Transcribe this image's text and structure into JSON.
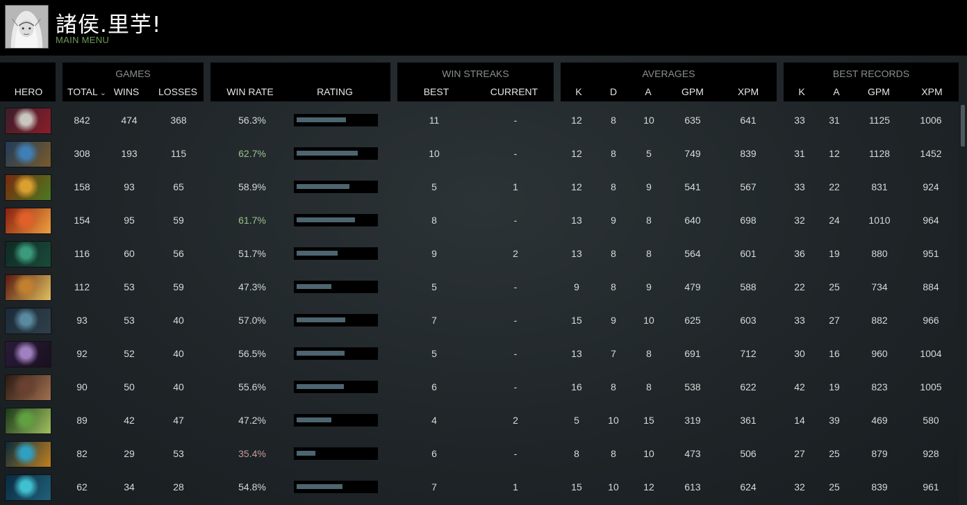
{
  "header": {
    "username": "諸侯.里芋!",
    "menu_link": "MAIN MENU"
  },
  "groups": {
    "games": "GAMES",
    "win_streaks": "WIN STREAKS",
    "averages": "AVERAGES",
    "best_records": "BEST RECORDS"
  },
  "columns": {
    "hero": "HERO",
    "total": "TOTAL",
    "wins": "WINS",
    "losses": "LOSSES",
    "win_rate": "WIN RATE",
    "rating": "RATING",
    "best": "BEST",
    "current": "CURRENT",
    "avg_k": "K",
    "avg_d": "D",
    "avg_a": "A",
    "avg_gpm": "GPM",
    "avg_xpm": "XPM",
    "best_k": "K",
    "best_a": "A",
    "best_gpm": "GPM",
    "best_xpm": "XPM"
  },
  "colors": {
    "win_rate_high": "#9cc48c",
    "win_rate_low": "#c99a9a",
    "rating_bar": "#4d6570",
    "menu_link": "#6e9c58"
  },
  "rows": [
    {
      "total": "842",
      "wins": "474",
      "losses": "368",
      "win_rate": "56.3%",
      "win_rate_style": "normal",
      "rating": 0.63,
      "streak_best": "11",
      "streak_current": "-",
      "k": "12",
      "d": "8",
      "a": "10",
      "gpm": "635",
      "xpm": "641",
      "best_k": "33",
      "best_a": "31",
      "best_gpm": "1125",
      "best_xpm": "1006"
    },
    {
      "total": "308",
      "wins": "193",
      "losses": "115",
      "win_rate": "62.7%",
      "win_rate_style": "high",
      "rating": 0.78,
      "streak_best": "10",
      "streak_current": "-",
      "k": "12",
      "d": "8",
      "a": "5",
      "gpm": "749",
      "xpm": "839",
      "best_k": "31",
      "best_a": "12",
      "best_gpm": "1128",
      "best_xpm": "1452"
    },
    {
      "total": "158",
      "wins": "93",
      "losses": "65",
      "win_rate": "58.9%",
      "win_rate_style": "normal",
      "rating": 0.67,
      "streak_best": "5",
      "streak_current": "1",
      "k": "12",
      "d": "8",
      "a": "9",
      "gpm": "541",
      "xpm": "567",
      "best_k": "33",
      "best_a": "22",
      "best_gpm": "831",
      "best_xpm": "924"
    },
    {
      "total": "154",
      "wins": "95",
      "losses": "59",
      "win_rate": "61.7%",
      "win_rate_style": "high",
      "rating": 0.74,
      "streak_best": "8",
      "streak_current": "-",
      "k": "13",
      "d": "9",
      "a": "8",
      "gpm": "640",
      "xpm": "698",
      "best_k": "32",
      "best_a": "24",
      "best_gpm": "1010",
      "best_xpm": "964"
    },
    {
      "total": "116",
      "wins": "60",
      "losses": "56",
      "win_rate": "51.7%",
      "win_rate_style": "normal",
      "rating": 0.52,
      "streak_best": "9",
      "streak_current": "2",
      "k": "13",
      "d": "8",
      "a": "8",
      "gpm": "564",
      "xpm": "601",
      "best_k": "36",
      "best_a": "19",
      "best_gpm": "880",
      "best_xpm": "951"
    },
    {
      "total": "112",
      "wins": "53",
      "losses": "59",
      "win_rate": "47.3%",
      "win_rate_style": "normal",
      "rating": 0.44,
      "streak_best": "5",
      "streak_current": "-",
      "k": "9",
      "d": "8",
      "a": "9",
      "gpm": "479",
      "xpm": "588",
      "best_k": "22",
      "best_a": "25",
      "best_gpm": "734",
      "best_xpm": "884"
    },
    {
      "total": "93",
      "wins": "53",
      "losses": "40",
      "win_rate": "57.0%",
      "win_rate_style": "normal",
      "rating": 0.62,
      "streak_best": "7",
      "streak_current": "-",
      "k": "15",
      "d": "9",
      "a": "10",
      "gpm": "625",
      "xpm": "603",
      "best_k": "33",
      "best_a": "27",
      "best_gpm": "882",
      "best_xpm": "966"
    },
    {
      "total": "92",
      "wins": "52",
      "losses": "40",
      "win_rate": "56.5%",
      "win_rate_style": "normal",
      "rating": 0.61,
      "streak_best": "5",
      "streak_current": "-",
      "k": "13",
      "d": "7",
      "a": "8",
      "gpm": "691",
      "xpm": "712",
      "best_k": "30",
      "best_a": "16",
      "best_gpm": "960",
      "best_xpm": "1004"
    },
    {
      "total": "90",
      "wins": "50",
      "losses": "40",
      "win_rate": "55.6%",
      "win_rate_style": "normal",
      "rating": 0.6,
      "streak_best": "6",
      "streak_current": "-",
      "k": "16",
      "d": "8",
      "a": "8",
      "gpm": "538",
      "xpm": "622",
      "best_k": "42",
      "best_a": "19",
      "best_gpm": "823",
      "best_xpm": "1005"
    },
    {
      "total": "89",
      "wins": "42",
      "losses": "47",
      "win_rate": "47.2%",
      "win_rate_style": "normal",
      "rating": 0.44,
      "streak_best": "4",
      "streak_current": "2",
      "k": "5",
      "d": "10",
      "a": "15",
      "gpm": "319",
      "xpm": "361",
      "best_k": "14",
      "best_a": "39",
      "best_gpm": "469",
      "best_xpm": "580"
    },
    {
      "total": "82",
      "wins": "29",
      "losses": "53",
      "win_rate": "35.4%",
      "win_rate_style": "low",
      "rating": 0.24,
      "streak_best": "6",
      "streak_current": "-",
      "k": "8",
      "d": "8",
      "a": "10",
      "gpm": "473",
      "xpm": "506",
      "best_k": "27",
      "best_a": "25",
      "best_gpm": "879",
      "best_xpm": "928"
    },
    {
      "total": "62",
      "wins": "34",
      "losses": "28",
      "win_rate": "54.8%",
      "win_rate_style": "normal",
      "rating": 0.58,
      "streak_best": "7",
      "streak_current": "1",
      "k": "15",
      "d": "10",
      "a": "12",
      "gpm": "613",
      "xpm": "624",
      "best_k": "32",
      "best_a": "25",
      "best_gpm": "839",
      "best_xpm": "961"
    }
  ],
  "hero_portraits": [
    [
      "#3a1d2a",
      "#c9c6c0",
      "#8a1e2a"
    ],
    [
      "#1f3c5a",
      "#3f7fb6",
      "#7a5a2a"
    ],
    [
      "#7a2a10",
      "#d9a030",
      "#4a7a20"
    ],
    [
      "#8a2010",
      "#e0602a",
      "#f0a040"
    ],
    [
      "#0e2a24",
      "#3a9a7a",
      "#1a4a3a"
    ],
    [
      "#5a1a10",
      "#c08030",
      "#e0c060"
    ],
    [
      "#1a2a3a",
      "#5a8aa0",
      "#30404a"
    ],
    [
      "#2a1a3a",
      "#a080c0",
      "#1a1020"
    ],
    [
      "#2a1a14",
      "#6a4030",
      "#a07050"
    ],
    [
      "#1a3a1a",
      "#60a040",
      "#a0c060"
    ],
    [
      "#0a2a3a",
      "#30a0c0",
      "#c08020"
    ],
    [
      "#0a2a40",
      "#40c0d0",
      "#20607a"
    ]
  ]
}
